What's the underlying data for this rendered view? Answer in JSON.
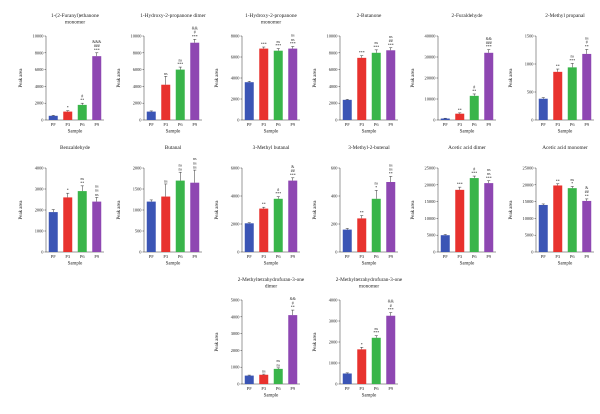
{
  "figure": {
    "categories": [
      "PF",
      "P3",
      "P6",
      "P9"
    ],
    "xlabel": "Sample",
    "ylabel": "Peak area",
    "series_colors": [
      "#3b55b5",
      "#e8322e",
      "#39b54a",
      "#8e47b2"
    ]
  },
  "chart_data": [
    {
      "type": "bar",
      "title": [
        "1-(2-Furanyl)ethanone",
        "monomer"
      ],
      "categories": [
        "PF",
        "P3",
        "P6",
        "P9"
      ],
      "values": [
        500,
        1000,
        1800,
        7600
      ],
      "errors": [
        60,
        110,
        200,
        400
      ],
      "ylim": [
        0,
        10000
      ],
      "yticks": [
        0,
        2000,
        4000,
        6000,
        8000,
        10000
      ],
      "annotations": [
        [],
        [
          "*"
        ],
        [
          "#",
          "**"
        ],
        [
          "&&&",
          "###",
          "***"
        ]
      ]
    },
    {
      "type": "bar",
      "title": [
        "1-Hydroxy-2-propanone dimer"
      ],
      "categories": [
        "PF",
        "P3",
        "P6",
        "P9"
      ],
      "values": [
        1000,
        4200,
        6000,
        9200
      ],
      "errors": [
        80,
        1000,
        300,
        400
      ],
      "ylim": [
        0,
        10000
      ],
      "yticks": [
        0,
        2000,
        4000,
        6000,
        8000,
        10000
      ],
      "annotations": [
        [],
        [
          "ns"
        ],
        [
          "ns",
          "***"
        ],
        [
          "&&",
          "#",
          "***"
        ]
      ]
    },
    {
      "type": "bar",
      "title": [
        "1-Hydroxy-2-propanone",
        "monomer"
      ],
      "categories": [
        "PF",
        "P3",
        "P6",
        "P9"
      ],
      "values": [
        3600,
        6800,
        6600,
        6800
      ],
      "errors": [
        80,
        150,
        200,
        200
      ],
      "ylim": [
        0,
        8000
      ],
      "yticks": [
        0,
        2000,
        4000,
        6000,
        8000
      ],
      "annotations": [
        [],
        [
          "***"
        ],
        [
          "ns",
          "***"
        ],
        [
          "ns",
          "ns",
          "***"
        ]
      ]
    },
    {
      "type": "bar",
      "title": [
        "2-Butanone"
      ],
      "categories": [
        "PF",
        "P3",
        "P6",
        "P9"
      ],
      "values": [
        2400,
        7400,
        8000,
        8300
      ],
      "errors": [
        60,
        250,
        350,
        300
      ],
      "ylim": [
        0,
        10000
      ],
      "yticks": [
        0,
        2000,
        4000,
        6000,
        8000,
        10000
      ],
      "annotations": [
        [],
        [
          "***"
        ],
        [
          "ns",
          "***"
        ],
        [
          "ns",
          "##",
          "***"
        ]
      ]
    },
    {
      "type": "bar",
      "title": [
        "2-Furaldehyde"
      ],
      "categories": [
        "PF",
        "P3",
        "P6",
        "P9"
      ],
      "values": [
        700,
        3000,
        11500,
        32000
      ],
      "errors": [
        150,
        400,
        900,
        1500
      ],
      "ylim": [
        0,
        40000
      ],
      "yticks": [
        0,
        10000,
        20000,
        30000,
        40000
      ],
      "annotations": [
        [],
        [
          "**"
        ],
        [
          "#",
          "**"
        ],
        [
          "&&",
          "###",
          "***"
        ]
      ]
    },
    {
      "type": "bar",
      "title": [
        "2-Methyl propanal"
      ],
      "categories": [
        "PF",
        "P3",
        "P6",
        "P9"
      ],
      "values": [
        380,
        860,
        940,
        1180
      ],
      "errors": [
        20,
        50,
        70,
        80
      ],
      "ylim": [
        0,
        1500
      ],
      "yticks": [
        0,
        500,
        1000,
        1500
      ],
      "annotations": [
        [],
        [
          "**"
        ],
        [
          "ns",
          "***"
        ],
        [
          "ns",
          "#",
          "**"
        ]
      ]
    },
    {
      "type": "bar",
      "title": [
        "Benzaldehyde"
      ],
      "categories": [
        "PF",
        "P3",
        "P6",
        "P9"
      ],
      "values": [
        1900,
        2600,
        2900,
        2400
      ],
      "errors": [
        120,
        200,
        250,
        200
      ],
      "ylim": [
        0,
        4000
      ],
      "yticks": [
        0,
        1000,
        2000,
        3000,
        4000
      ],
      "annotations": [
        [],
        [
          "*"
        ],
        [
          "ns",
          "**"
        ],
        [
          "ns",
          "ns",
          "ns"
        ]
      ]
    },
    {
      "type": "bar",
      "title": [
        "Butanal"
      ],
      "categories": [
        "PF",
        "P3",
        "P6",
        "P9"
      ],
      "values": [
        1200,
        1320,
        1700,
        1650
      ],
      "errors": [
        40,
        300,
        200,
        300
      ],
      "ylim": [
        0,
        2000
      ],
      "yticks": [
        0,
        500,
        1000,
        1500,
        2000
      ],
      "annotations": [
        [],
        [
          "ns"
        ],
        [
          "ns",
          "ns"
        ],
        [
          "ns",
          "ns",
          "ns"
        ]
      ]
    },
    {
      "type": "bar",
      "title": [
        "3-Methyl butanal"
      ],
      "categories": [
        "PF",
        "P3",
        "P6",
        "P9"
      ],
      "values": [
        2050,
        3100,
        3800,
        5100
      ],
      "errors": [
        40,
        100,
        150,
        200
      ],
      "ylim": [
        0,
        6000
      ],
      "yticks": [
        0,
        2000,
        4000,
        6000
      ],
      "annotations": [
        [],
        [
          "**"
        ],
        [
          "#",
          "***"
        ],
        [
          "&",
          "##",
          "***"
        ]
      ]
    },
    {
      "type": "bar",
      "title": [
        "3-Methyl-2-butenal"
      ],
      "categories": [
        "PF",
        "P3",
        "P6",
        "P9"
      ],
      "values": [
        160,
        240,
        380,
        500
      ],
      "errors": [
        8,
        20,
        60,
        40
      ],
      "ylim": [
        0,
        600
      ],
      "yticks": [
        0,
        200,
        400,
        600
      ],
      "annotations": [
        [],
        [
          "**"
        ],
        [
          "ns",
          "*"
        ],
        [
          "ns",
          "ns",
          "**"
        ]
      ]
    },
    {
      "type": "bar",
      "title": [
        "Acetic acid dimer"
      ],
      "categories": [
        "PF",
        "P3",
        "P6",
        "P9"
      ],
      "values": [
        5000,
        18500,
        22000,
        20500
      ],
      "errors": [
        200,
        800,
        600,
        700
      ],
      "ylim": [
        0,
        25000
      ],
      "yticks": [
        0,
        5000,
        10000,
        15000,
        20000,
        25000
      ],
      "annotations": [
        [],
        [
          "***"
        ],
        [
          "#",
          "***"
        ],
        [
          "ns",
          "ns",
          "***"
        ]
      ]
    },
    {
      "type": "bar",
      "title": [
        "Acetic acid monomer"
      ],
      "categories": [
        "PF",
        "P3",
        "P6",
        "P9"
      ],
      "values": [
        14000,
        19800,
        19000,
        15200
      ],
      "errors": [
        300,
        500,
        500,
        600
      ],
      "ylim": [
        0,
        25000
      ],
      "yticks": [
        0,
        5000,
        10000,
        15000,
        20000,
        25000
      ],
      "annotations": [
        [],
        [
          "**"
        ],
        [
          "ns",
          "*"
        ],
        [
          "&",
          "##",
          "**"
        ]
      ]
    },
    {
      "type": "bar",
      "title": [
        "2-Methyltetrahydrofuran-3-one",
        "dimer"
      ],
      "categories": [
        "PF",
        "P3",
        "P6",
        "P9"
      ],
      "values": [
        500,
        550,
        900,
        4100
      ],
      "errors": [
        30,
        40,
        60,
        300
      ],
      "ylim": [
        0,
        5000
      ],
      "yticks": [
        0,
        1000,
        2000,
        3000,
        4000,
        5000
      ],
      "annotations": [
        [],
        [
          "ns"
        ],
        [
          "ns",
          "ns"
        ],
        [
          "&&",
          "#",
          "**"
        ]
      ]
    },
    {
      "type": "bar",
      "title": [
        "2-Methyltetrahydrofuran-3-one",
        "monomer"
      ],
      "categories": [
        "PF",
        "P3",
        "P6",
        "P9"
      ],
      "values": [
        500,
        1650,
        2200,
        3250
      ],
      "errors": [
        30,
        100,
        100,
        150
      ],
      "ylim": [
        0,
        4000
      ],
      "yticks": [
        0,
        1000,
        2000,
        3000,
        4000
      ],
      "annotations": [
        [],
        [
          "*"
        ],
        [
          "ns",
          "***"
        ],
        [
          "&&",
          "#",
          "***"
        ]
      ]
    }
  ]
}
